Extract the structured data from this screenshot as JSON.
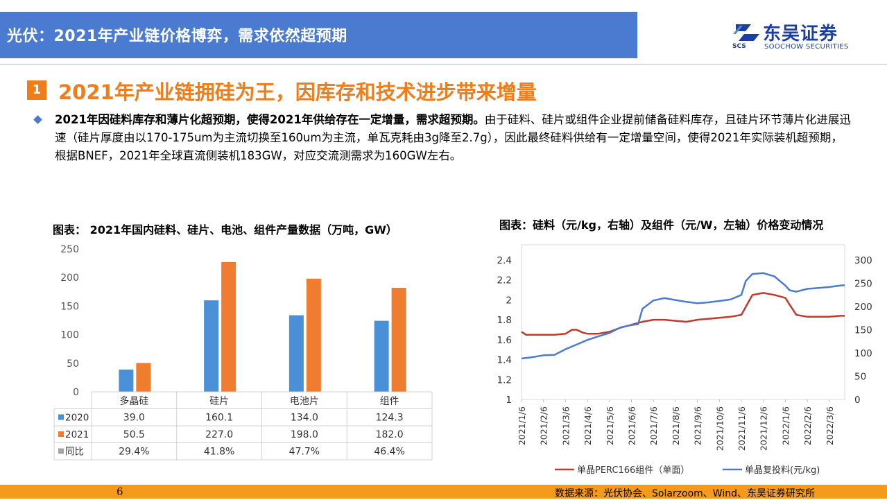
{
  "header": {
    "title": "光伏：2021年产业链价格博弈，需求依然超预期",
    "logo_cn": "东吴证券",
    "logo_en": "SOOCHOW SECURITIES",
    "logo_abbr": "SCS"
  },
  "section": {
    "number": "1",
    "title": "2021年产业链拥硅为王，因库存和技术进步带来增量"
  },
  "paragraph": {
    "bold": "2021年因硅料库存和薄片化超预期，使得2021年供给存在一定增量，需求超预期。",
    "rest": "由于硅料、硅片或组件企业提前储备硅料库存，且硅片环节薄片化进展迅速（硅片厚度由以170-175um为主流切换至160um为主流，单瓦克耗由3g降至2.7g），因此最终硅料供给有一定增量空间，使得2021年实际装机超预期，根据BNEF，2021年全球直流侧装机183GW，对应交流测需求为160GW左右。"
  },
  "figure1": {
    "caption": "图表：  2021年国内硅料、硅片、电池、组件产量数据（万吨，GW）"
  },
  "figure2": {
    "caption": "图表：硅料（元/kg，右轴）及组件（元/W，左轴）价格变动情况"
  },
  "chart_data": [
    {
      "type": "bar",
      "categories": [
        "多晶硅",
        "硅片",
        "电池片",
        "组件"
      ],
      "series": [
        {
          "name": "2020",
          "values": [
            39.0,
            160.1,
            134.0,
            124.3
          ],
          "labels": [
            "39.0",
            "160.1",
            "134.0",
            "124.3"
          ],
          "color": "#4a90d9"
        },
        {
          "name": "2021",
          "values": [
            50.5,
            227.0,
            198.0,
            182.0
          ],
          "labels": [
            "50.5",
            "227.0",
            "198.0",
            "182.0"
          ],
          "color": "#f07c30"
        }
      ],
      "table_extra_row": {
        "name": "同比",
        "values": [
          "29.4%",
          "41.8%",
          "47.7%",
          "46.4%"
        ],
        "color": "#a5a5a5"
      },
      "ylim": [
        0,
        250
      ],
      "yticks": [
        0,
        50,
        100,
        150,
        200,
        250
      ]
    },
    {
      "type": "line",
      "x_ticks": [
        "2021/1/6",
        "2021/2/6",
        "2021/3/6",
        "2021/4/6",
        "2021/5/6",
        "2021/6/6",
        "2021/7/6",
        "2021/8/6",
        "2021/9/6",
        "2021/10/6",
        "2021/11/6",
        "2021/12/6",
        "2022/1/6",
        "2022/2/6",
        "2022/3/6"
      ],
      "y_left_ticks": [
        "1",
        "1.2",
        "1.4",
        "1.6",
        "1.8",
        "2",
        "2.2",
        "2.4"
      ],
      "y_right_ticks": [
        "0",
        "50",
        "100",
        "150",
        "200",
        "250",
        "300"
      ],
      "y_left_range": [
        1,
        2.4
      ],
      "y_right_range": [
        0,
        300
      ],
      "x_range": [
        0,
        14.7
      ],
      "series": [
        {
          "name": "单晶PERC166组件（单面）",
          "axis": "left",
          "color": "#c0392b",
          "x": [
            0,
            0.2,
            0.5,
            1,
            1.5,
            2,
            2.3,
            2.5,
            2.8,
            3,
            3.5,
            4,
            4.5,
            5,
            5.5,
            6,
            6.5,
            7,
            7.5,
            8,
            8.5,
            9,
            9.5,
            10,
            10.5,
            11,
            11.5,
            12,
            12.2,
            12.5,
            13,
            13.5,
            14,
            14.5,
            14.7
          ],
          "y": [
            1.68,
            1.65,
            1.65,
            1.65,
            1.65,
            1.66,
            1.7,
            1.7,
            1.67,
            1.66,
            1.66,
            1.68,
            1.72,
            1.75,
            1.78,
            1.8,
            1.8,
            1.79,
            1.78,
            1.8,
            1.81,
            1.82,
            1.83,
            1.85,
            2.05,
            2.07,
            2.05,
            2.02,
            1.95,
            1.85,
            1.83,
            1.83,
            1.83,
            1.84,
            1.84
          ]
        },
        {
          "name": "单晶复投料(元/kg)",
          "axis": "right",
          "color": "#4a7bd0",
          "x": [
            0,
            0.5,
            1,
            1.5,
            2,
            2.5,
            3,
            3.5,
            4,
            4.5,
            5,
            5.3,
            5.5,
            6,
            6.5,
            7,
            7.5,
            8,
            8.5,
            9,
            9.5,
            10,
            10.2,
            10.5,
            11,
            11.5,
            12,
            12.2,
            12.5,
            13,
            13.5,
            14,
            14.5,
            14.7
          ],
          "y": [
            88,
            91,
            95,
            96,
            108,
            118,
            128,
            136,
            143,
            155,
            160,
            162,
            195,
            213,
            218,
            214,
            210,
            207,
            209,
            212,
            215,
            225,
            255,
            270,
            272,
            265,
            245,
            235,
            232,
            238,
            240,
            242,
            245,
            246
          ]
        }
      ]
    }
  ],
  "footer": {
    "page": "6",
    "source": "数据来源：光伏协会、Solarzoom、Wind、东吴证券研究所"
  }
}
